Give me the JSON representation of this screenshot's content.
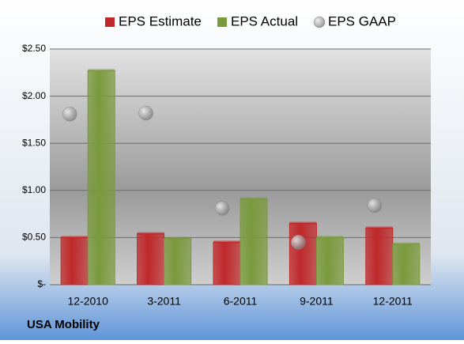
{
  "chart_data": {
    "type": "bar",
    "annotation": "USA Mobility",
    "categories": [
      "12-2010",
      "3-2011",
      "6-2011",
      "9-2011",
      "12-2011"
    ],
    "series": [
      {
        "name": "EPS Estimate",
        "color": "#c0282a",
        "values": [
          0.5,
          0.54,
          0.45,
          0.65,
          0.6
        ]
      },
      {
        "name": "EPS Actual",
        "color": "#7a9a3c",
        "values": [
          2.27,
          0.49,
          0.91,
          0.5,
          0.43
        ]
      },
      {
        "name": "EPS GAAP",
        "color": "#a8a8a8",
        "type": "scatter",
        "values": [
          1.81,
          1.82,
          0.81,
          0.45,
          0.84
        ]
      }
    ],
    "ylim": [
      0,
      2.5
    ],
    "yticks": [
      {
        "value": 0,
        "label": "$-"
      },
      {
        "value": 0.5,
        "label": "$0.50"
      },
      {
        "value": 1,
        "label": "$1.00"
      },
      {
        "value": 1.5,
        "label": "$1.50"
      },
      {
        "value": 2,
        "label": "$2.00"
      },
      {
        "value": 2.5,
        "label": "$2.50"
      }
    ],
    "grid": true,
    "legend": "top"
  }
}
